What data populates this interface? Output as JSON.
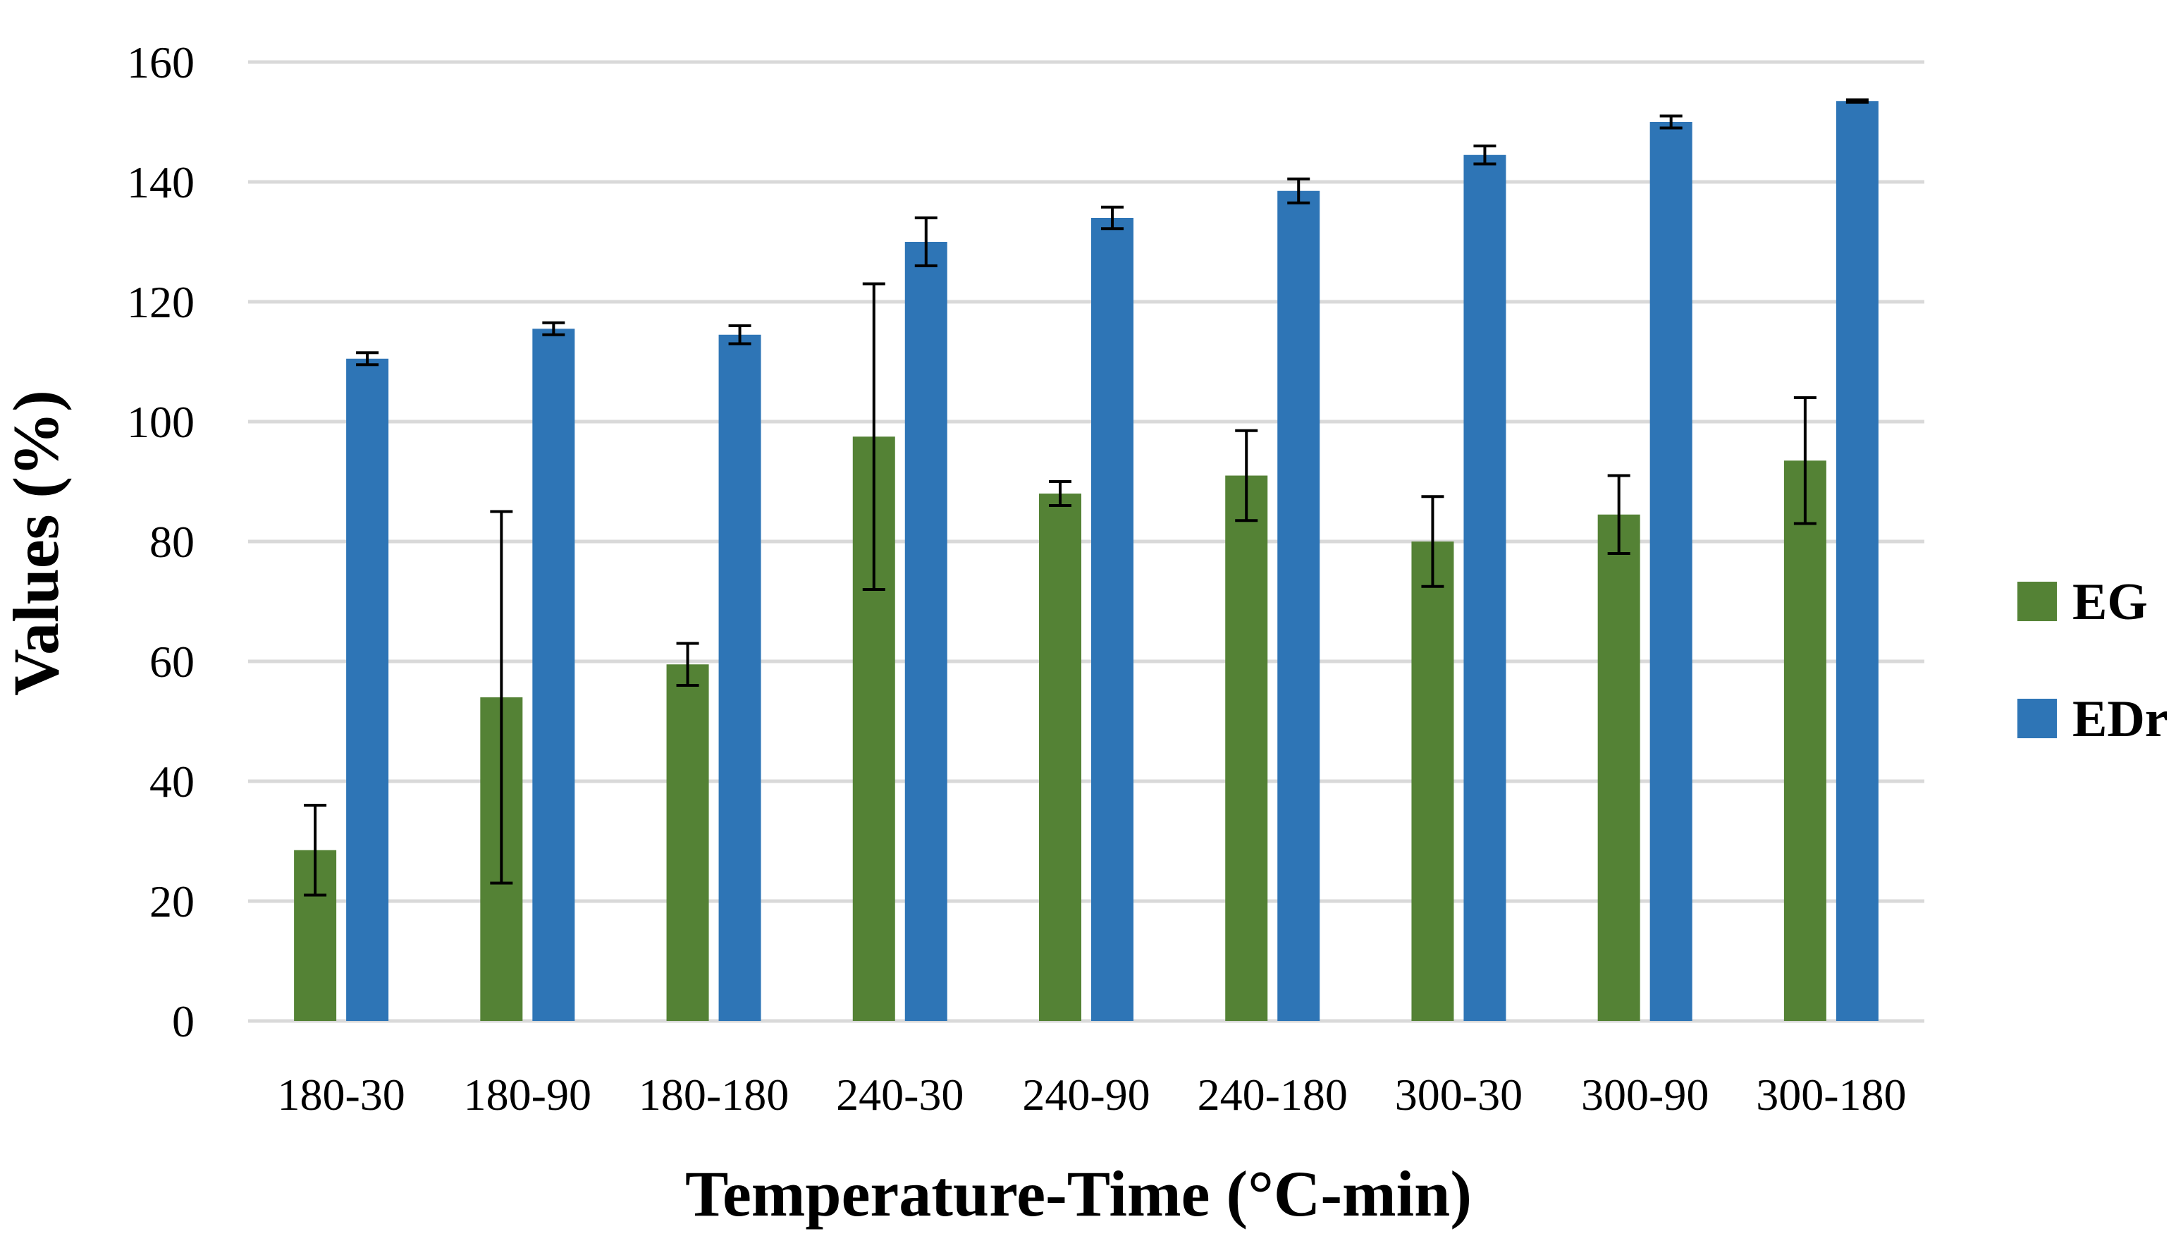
{
  "chart_data": {
    "type": "bar",
    "title": "",
    "xlabel": "Temperature-Time (°C-min)",
    "ylabel": "Values (%)",
    "ylim": [
      0,
      160
    ],
    "yticks": [
      "0",
      "20",
      "40",
      "60",
      "80",
      "100",
      "120",
      "140",
      "160"
    ],
    "grid": true,
    "legend_position": "right",
    "categories": [
      "180-30",
      "180-90",
      "180-180",
      "240-30",
      "240-90",
      "240-180",
      "300-30",
      "300-90",
      "300-180"
    ],
    "series": [
      {
        "name": "EG",
        "color": "#548235",
        "values": [
          28.5,
          54,
          59.5,
          97.5,
          88,
          91,
          80,
          84.5,
          93.5
        ],
        "errors": [
          7.5,
          31,
          3.5,
          25.5,
          2,
          7.5,
          7.5,
          6.5,
          10.5
        ]
      },
      {
        "name": "EDr",
        "color": "#2E75B6",
        "values": [
          110.5,
          115.5,
          114.5,
          130,
          134,
          138.5,
          144.5,
          150,
          153.5
        ],
        "errors": [
          1,
          1,
          1.5,
          4,
          1.8,
          2,
          1.5,
          1,
          0.2
        ]
      }
    ]
  }
}
